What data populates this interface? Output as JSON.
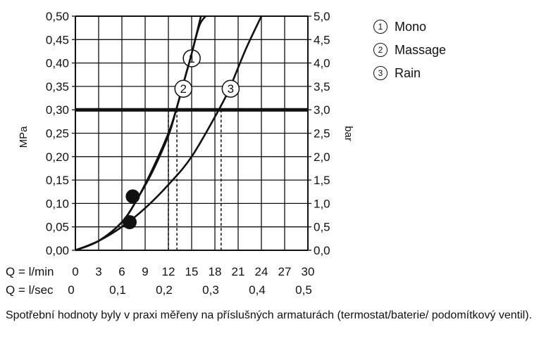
{
  "chart_data": {
    "type": "line",
    "ylabel_left": "MPa",
    "ylabel_right": "bar",
    "x_flow_label": "Q = l/min",
    "x_sec_label": "Q = l/sec",
    "x_ticks": [
      "0",
      "3",
      "6",
      "9",
      "12",
      "15",
      "18",
      "21",
      "24",
      "27",
      "30"
    ],
    "x_sec_ticks": [
      "0",
      "0,1",
      "0,2",
      "0,3",
      "0,4",
      "0,5"
    ],
    "y_left_ticks": [
      "0,00",
      "0,05",
      "0,10",
      "0,15",
      "0,20",
      "0,25",
      "0,30",
      "0,35",
      "0,40",
      "0,45",
      "0,50"
    ],
    "y_right_ticks": [
      "0,0",
      "0,5",
      "1,0",
      "1,5",
      "2,0",
      "2,5",
      "3,0",
      "3,5",
      "4,0",
      "4,5",
      "5,0"
    ],
    "xlim": [
      0,
      30
    ],
    "ylim": [
      0,
      0.5
    ],
    "grid": true,
    "reference_line_mpa": 0.3,
    "series": [
      {
        "name": "Mono",
        "marker": "1",
        "x": [
          0,
          3,
          6,
          8,
          10,
          12,
          13,
          14,
          15,
          16,
          16.8
        ],
        "y": [
          0,
          0.02,
          0.06,
          0.11,
          0.175,
          0.25,
          0.3,
          0.36,
          0.42,
          0.48,
          0.5
        ],
        "dash_at": 12.0
      },
      {
        "name": "Massage",
        "marker": "2",
        "x": [
          0,
          3,
          6,
          8,
          10,
          12,
          13,
          14,
          15,
          16.2
        ],
        "y": [
          0,
          0.02,
          0.06,
          0.11,
          0.17,
          0.245,
          0.3,
          0.36,
          0.42,
          0.5
        ],
        "dash_at": 13.1
      },
      {
        "name": "Rain",
        "marker": "3",
        "x": [
          0,
          3,
          6,
          9,
          12,
          15,
          18.5,
          20,
          22,
          24
        ],
        "y": [
          0,
          0.02,
          0.05,
          0.09,
          0.14,
          0.2,
          0.3,
          0.35,
          0.43,
          0.5
        ],
        "dash_at": 18.8
      }
    ],
    "points": [
      {
        "x": 7.4,
        "y": 0.115
      },
      {
        "x": 7.0,
        "y": 0.06
      }
    ]
  },
  "legend": {
    "items": [
      {
        "num": "1",
        "label": "Mono"
      },
      {
        "num": "2",
        "label": "Massage"
      },
      {
        "num": "3",
        "label": "Rain"
      }
    ]
  },
  "footnote": "Spotřební hodnoty byly v praxi měřeny na příslušných armaturách (termostat/baterie/ podomítkový ventil)."
}
